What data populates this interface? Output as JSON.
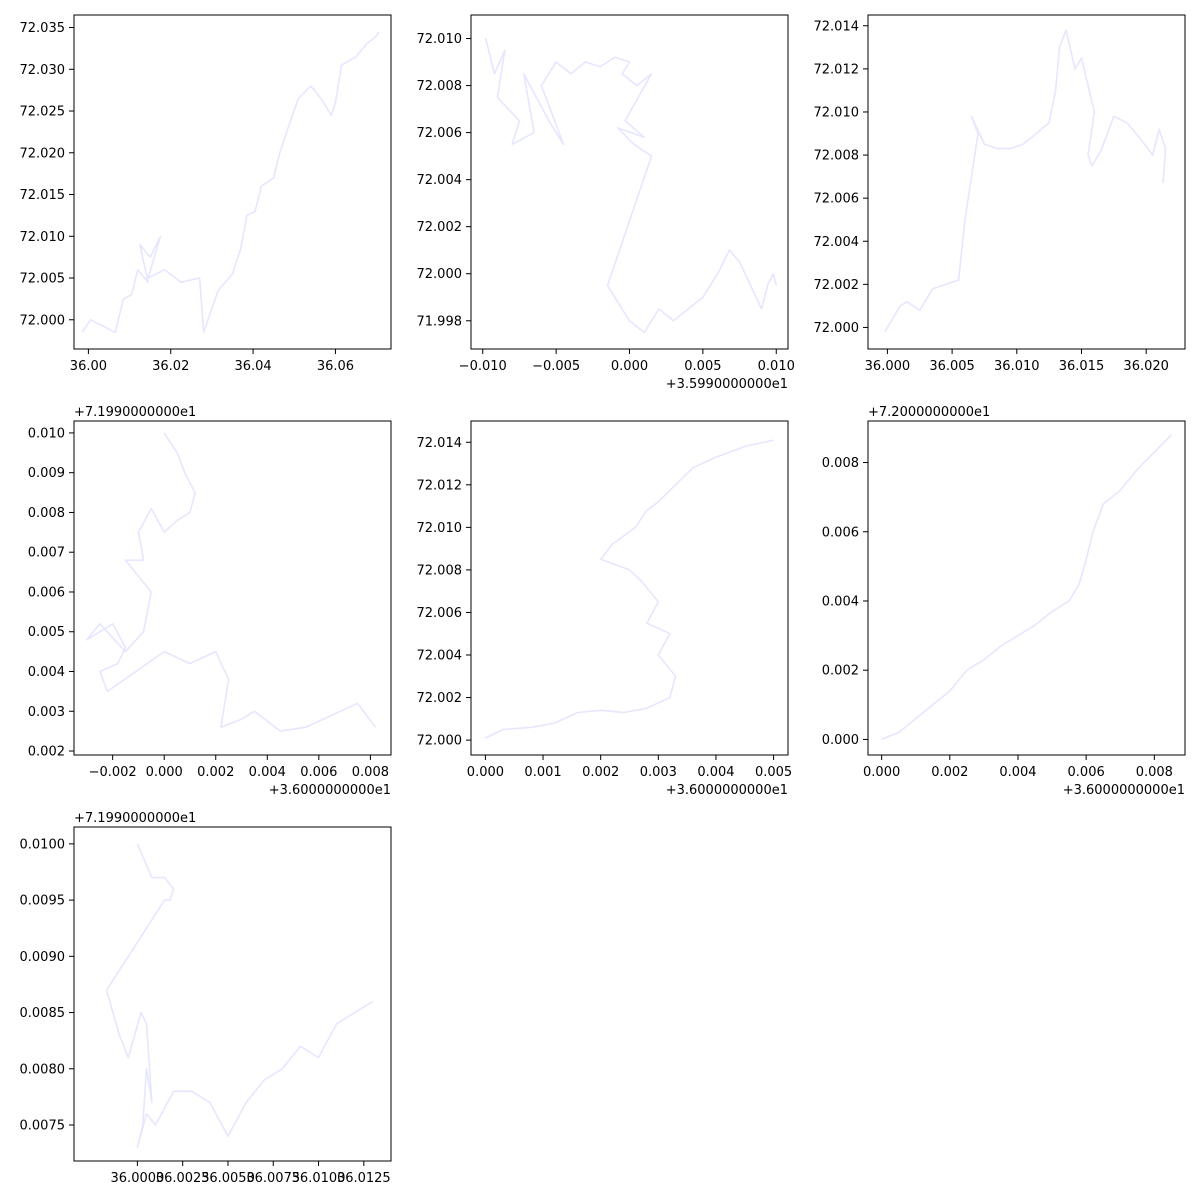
{
  "figure": {
    "line_color": "#e6e6ff",
    "axis_color": "#000000",
    "background": "#ffffff"
  },
  "chart_data": [
    {
      "type": "line",
      "x_offset": "",
      "y_offset": "",
      "xlim": [
        35.9965,
        36.0735
      ],
      "ylim": [
        71.9965,
        72.0365
      ],
      "xticks": [
        {
          "v": 36.0,
          "label": "36.00"
        },
        {
          "v": 36.02,
          "label": "36.02"
        },
        {
          "v": 36.04,
          "label": "36.04"
        },
        {
          "v": 36.06,
          "label": "36.06"
        }
      ],
      "yticks": [
        {
          "v": 72.0,
          "label": "72.000"
        },
        {
          "v": 72.005,
          "label": "72.005"
        },
        {
          "v": 72.01,
          "label": "72.010"
        },
        {
          "v": 72.015,
          "label": "72.015"
        },
        {
          "v": 72.02,
          "label": "72.020"
        },
        {
          "v": 72.025,
          "label": "72.025"
        },
        {
          "v": 72.03,
          "label": "72.030"
        },
        {
          "v": 72.035,
          "label": "72.035"
        }
      ],
      "x": [
        35.9985,
        36.0005,
        36.0045,
        36.0065,
        36.0085,
        36.0105,
        36.012,
        36.0145,
        36.0125,
        36.015,
        36.0175,
        36.0145,
        36.0185,
        36.0225,
        36.027,
        36.028,
        36.0315,
        36.035,
        36.037,
        36.0385,
        36.0405,
        36.042,
        36.045,
        36.0465,
        36.0485,
        36.051,
        36.054,
        36.0565,
        36.059,
        36.06,
        36.0615,
        36.065,
        36.0675,
        36.07,
        36.0705
      ],
      "y": [
        71.9985,
        72.0,
        71.999,
        71.9985,
        72.0025,
        72.003,
        72.006,
        72.0045,
        72.009,
        72.0075,
        72.01,
        72.005,
        72.006,
        72.0045,
        72.005,
        71.9985,
        72.0035,
        72.0055,
        72.0085,
        72.0125,
        72.013,
        72.016,
        72.017,
        72.02,
        72.023,
        72.0265,
        72.028,
        72.0265,
        72.0245,
        72.026,
        72.0305,
        72.0315,
        72.033,
        72.034,
        72.0345
      ]
    },
    {
      "type": "line",
      "x_offset": "+3.5990000000e1",
      "y_offset": "",
      "xlim": [
        -0.0108,
        0.0108
      ],
      "ylim": [
        71.9968,
        72.011
      ],
      "xticks": [
        {
          "v": -0.01,
          "label": "−0.010"
        },
        {
          "v": -0.005,
          "label": "−0.005"
        },
        {
          "v": 0.0,
          "label": "0.000"
        },
        {
          "v": 0.005,
          "label": "0.005"
        },
        {
          "v": 0.01,
          "label": "0.010"
        }
      ],
      "yticks": [
        {
          "v": 71.998,
          "label": "71.998"
        },
        {
          "v": 72.0,
          "label": "72.000"
        },
        {
          "v": 72.002,
          "label": "72.002"
        },
        {
          "v": 72.004,
          "label": "72.004"
        },
        {
          "v": 72.006,
          "label": "72.006"
        },
        {
          "v": 72.008,
          "label": "72.008"
        },
        {
          "v": 72.01,
          "label": "72.010"
        }
      ],
      "x": [
        -0.0098,
        -0.0092,
        -0.0085,
        -0.009,
        -0.0075,
        -0.008,
        -0.0065,
        -0.0072,
        -0.0055,
        -0.0045,
        -0.006,
        -0.005,
        -0.004,
        -0.003,
        -0.002,
        -0.001,
        0.0,
        -0.0005,
        0.0005,
        0.0015,
        -0.0003,
        0.001,
        -0.0008,
        0.0003,
        0.0015,
        -0.0015,
        -0.001,
        0.0,
        0.001,
        0.002,
        0.003,
        0.004,
        0.005,
        0.006,
        0.0068,
        0.0075,
        0.009,
        0.0094,
        0.0098,
        0.01
      ],
      "y": [
        72.01,
        72.0085,
        72.0095,
        72.0075,
        72.0065,
        72.0055,
        72.006,
        72.0085,
        72.0065,
        72.0055,
        72.008,
        72.009,
        72.0085,
        72.009,
        72.0088,
        72.0092,
        72.009,
        72.0085,
        72.008,
        72.0085,
        72.0065,
        72.0058,
        72.0062,
        72.0055,
        72.005,
        71.9995,
        71.999,
        71.998,
        71.9975,
        71.9985,
        71.998,
        71.9985,
        71.999,
        72.0,
        72.001,
        72.0005,
        71.9985,
        71.9995,
        72.0,
        71.9995
      ]
    },
    {
      "type": "line",
      "x_offset": "",
      "y_offset": "",
      "xlim": [
        35.9985,
        36.023
      ],
      "ylim": [
        71.999,
        72.0145
      ],
      "xticks": [
        {
          "v": 36.0,
          "label": "36.000"
        },
        {
          "v": 36.005,
          "label": "36.005"
        },
        {
          "v": 36.01,
          "label": "36.010"
        },
        {
          "v": 36.015,
          "label": "36.015"
        },
        {
          "v": 36.02,
          "label": "36.020"
        }
      ],
      "yticks": [
        {
          "v": 72.0,
          "label": "72.000"
        },
        {
          "v": 72.002,
          "label": "72.002"
        },
        {
          "v": 72.004,
          "label": "72.004"
        },
        {
          "v": 72.006,
          "label": "72.006"
        },
        {
          "v": 72.008,
          "label": "72.008"
        },
        {
          "v": 72.01,
          "label": "72.010"
        },
        {
          "v": 72.012,
          "label": "72.012"
        },
        {
          "v": 72.014,
          "label": "72.014"
        }
      ],
      "x": [
        35.9998,
        36.0003,
        36.001,
        36.0015,
        36.0025,
        36.0035,
        36.0045,
        36.0055,
        36.006,
        36.007,
        36.0065,
        36.0075,
        36.0085,
        36.0095,
        36.0105,
        36.0115,
        36.0125,
        36.013,
        36.0133,
        36.0138,
        36.0145,
        36.015,
        36.016,
        36.0155,
        36.0158,
        36.0165,
        36.0175,
        36.0185,
        36.0195,
        36.0205,
        36.021,
        36.0215,
        36.0213
      ],
      "y": [
        71.9998,
        72.0003,
        72.001,
        72.0012,
        72.0008,
        72.0018,
        72.002,
        72.0022,
        72.005,
        72.009,
        72.0098,
        72.0085,
        72.0083,
        72.0083,
        72.0085,
        72.009,
        72.0095,
        72.011,
        72.013,
        72.0138,
        72.012,
        72.0125,
        72.01,
        72.008,
        72.0075,
        72.0082,
        72.0098,
        72.0095,
        72.0088,
        72.008,
        72.0092,
        72.0083,
        72.0067
      ]
    },
    {
      "type": "line",
      "x_offset": "+3.6000000000e1",
      "y_offset": "+7.1990000000e1",
      "xlim": [
        -0.0035,
        0.0088
      ],
      "ylim": [
        0.0019,
        0.0103
      ],
      "xticks": [
        {
          "v": -0.002,
          "label": "−0.002"
        },
        {
          "v": 0.0,
          "label": "0.000"
        },
        {
          "v": 0.002,
          "label": "0.002"
        },
        {
          "v": 0.004,
          "label": "0.004"
        },
        {
          "v": 0.006,
          "label": "0.006"
        },
        {
          "v": 0.008,
          "label": "0.008"
        }
      ],
      "yticks": [
        {
          "v": 0.002,
          "label": "0.002"
        },
        {
          "v": 0.003,
          "label": "0.003"
        },
        {
          "v": 0.004,
          "label": "0.004"
        },
        {
          "v": 0.005,
          "label": "0.005"
        },
        {
          "v": 0.006,
          "label": "0.006"
        },
        {
          "v": 0.007,
          "label": "0.007"
        },
        {
          "v": 0.008,
          "label": "0.008"
        },
        {
          "v": 0.009,
          "label": "0.009"
        },
        {
          "v": 0.01,
          "label": "0.010"
        }
      ],
      "x": [
        0.0,
        0.0005,
        0.0008,
        0.0012,
        0.001,
        0.0005,
        0.0,
        -0.0005,
        -0.001,
        -0.0008,
        -0.0015,
        -0.0005,
        -0.0008,
        -0.0015,
        -0.0025,
        -0.003,
        -0.002,
        -0.0015,
        -0.0018,
        -0.0025,
        -0.0022,
        0.0,
        0.001,
        0.002,
        0.0025,
        0.0022,
        0.003,
        0.0035,
        0.0045,
        0.0055,
        0.0065,
        0.0075,
        0.0082
      ],
      "y": [
        0.01,
        0.0095,
        0.009,
        0.0085,
        0.008,
        0.0078,
        0.0075,
        0.0081,
        0.0075,
        0.0068,
        0.0068,
        0.006,
        0.005,
        0.0045,
        0.0052,
        0.0048,
        0.0052,
        0.0046,
        0.0042,
        0.004,
        0.0035,
        0.0045,
        0.0042,
        0.0045,
        0.0038,
        0.0026,
        0.0028,
        0.003,
        0.0025,
        0.0026,
        0.0029,
        0.0032,
        0.0026
      ]
    },
    {
      "type": "line",
      "x_offset": "+3.6000000000e1",
      "y_offset": "",
      "xlim": [
        -0.00025,
        0.00525
      ],
      "ylim": [
        71.9993,
        72.015
      ],
      "xticks": [
        {
          "v": 0.0,
          "label": "0.000"
        },
        {
          "v": 0.001,
          "label": "0.001"
        },
        {
          "v": 0.002,
          "label": "0.002"
        },
        {
          "v": 0.003,
          "label": "0.003"
        },
        {
          "v": 0.004,
          "label": "0.004"
        },
        {
          "v": 0.005,
          "label": "0.005"
        }
      ],
      "yticks": [
        {
          "v": 72.0,
          "label": "72.000"
        },
        {
          "v": 72.002,
          "label": "72.002"
        },
        {
          "v": 72.004,
          "label": "72.004"
        },
        {
          "v": 72.006,
          "label": "72.006"
        },
        {
          "v": 72.008,
          "label": "72.008"
        },
        {
          "v": 72.01,
          "label": "72.010"
        },
        {
          "v": 72.012,
          "label": "72.012"
        },
        {
          "v": 72.014,
          "label": "72.014"
        }
      ],
      "x": [
        0.0,
        0.0003,
        0.0008,
        0.0012,
        0.0016,
        0.002,
        0.0024,
        0.0028,
        0.0032,
        0.0033,
        0.003,
        0.0032,
        0.0028,
        0.003,
        0.0027,
        0.0025,
        0.002,
        0.0022,
        0.0026,
        0.0028,
        0.003,
        0.0033,
        0.0036,
        0.004,
        0.0045,
        0.005
      ],
      "y": [
        72.0001,
        72.0005,
        72.0006,
        72.0008,
        72.0013,
        72.0014,
        72.0013,
        72.0015,
        72.002,
        72.003,
        72.004,
        72.005,
        72.0055,
        72.0065,
        72.0075,
        72.008,
        72.0085,
        72.0092,
        72.01,
        72.0108,
        72.0112,
        72.012,
        72.0128,
        72.0133,
        72.0138,
        72.0141
      ]
    },
    {
      "type": "line",
      "x_offset": "+3.6000000000e1",
      "y_offset": "+7.2000000000e1",
      "xlim": [
        -0.0004,
        0.0089
      ],
      "ylim": [
        -0.00045,
        0.0092
      ],
      "xticks": [
        {
          "v": 0.0,
          "label": "0.000"
        },
        {
          "v": 0.002,
          "label": "0.002"
        },
        {
          "v": 0.004,
          "label": "0.004"
        },
        {
          "v": 0.006,
          "label": "0.006"
        },
        {
          "v": 0.008,
          "label": "0.008"
        }
      ],
      "yticks": [
        {
          "v": 0.0,
          "label": "0.000"
        },
        {
          "v": 0.002,
          "label": "0.002"
        },
        {
          "v": 0.004,
          "label": "0.004"
        },
        {
          "v": 0.006,
          "label": "0.006"
        },
        {
          "v": 0.008,
          "label": "0.008"
        }
      ],
      "x": [
        0.0,
        0.0005,
        0.001,
        0.0015,
        0.002,
        0.0025,
        0.003,
        0.0035,
        0.004,
        0.0045,
        0.005,
        0.0055,
        0.0058,
        0.006,
        0.0062,
        0.0065,
        0.007,
        0.0075,
        0.008,
        0.0085
      ],
      "y": [
        0.0,
        0.0002,
        0.0006,
        0.001,
        0.0014,
        0.002,
        0.0023,
        0.0027,
        0.003,
        0.0033,
        0.0037,
        0.004,
        0.0045,
        0.0052,
        0.006,
        0.0068,
        0.0072,
        0.0078,
        0.0083,
        0.0088
      ]
    },
    {
      "type": "line",
      "x_offset": "",
      "y_offset": "+7.1990000000e1",
      "xlim": [
        35.9965,
        36.014
      ],
      "ylim": [
        0.00718,
        0.01015
      ],
      "xticks": [
        {
          "v": 36.0,
          "label": "36.0000"
        },
        {
          "v": 36.0025,
          "label": "36.0025"
        },
        {
          "v": 36.005,
          "label": "36.0050"
        },
        {
          "v": 36.0075,
          "label": "36.0075"
        },
        {
          "v": 36.01,
          "label": "36.0100"
        },
        {
          "v": 36.0125,
          "label": "36.0125"
        }
      ],
      "yticks": [
        {
          "v": 0.0075,
          "label": "0.0075"
        },
        {
          "v": 0.008,
          "label": "0.0080"
        },
        {
          "v": 0.0085,
          "label": "0.0085"
        },
        {
          "v": 0.009,
          "label": "0.0090"
        },
        {
          "v": 0.0095,
          "label": "0.0095"
        },
        {
          "v": 0.01,
          "label": "0.0100"
        }
      ],
      "x": [
        36.0,
        36.0008,
        36.0015,
        36.002,
        36.0018,
        36.0015,
        35.9983,
        35.999,
        35.9995,
        36.0002,
        36.0005,
        36.0008,
        36.0005,
        36.0003,
        36.0,
        36.0005,
        36.001,
        36.002,
        36.003,
        36.004,
        36.005,
        36.006,
        36.007,
        36.008,
        36.009,
        36.01,
        36.011,
        36.012,
        36.013
      ],
      "y": [
        0.01,
        0.0097,
        0.0097,
        0.0096,
        0.0095,
        0.0095,
        0.0087,
        0.0083,
        0.0081,
        0.0085,
        0.0084,
        0.0077,
        0.008,
        0.0075,
        0.0073,
        0.0076,
        0.0075,
        0.0078,
        0.0078,
        0.0077,
        0.0074,
        0.0077,
        0.0079,
        0.008,
        0.0082,
        0.0081,
        0.0084,
        0.0085,
        0.0086
      ]
    }
  ]
}
